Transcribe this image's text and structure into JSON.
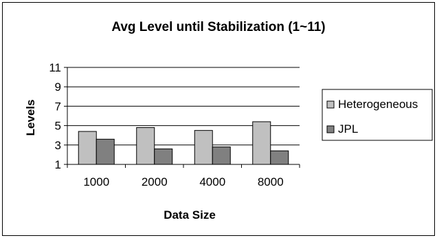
{
  "chart_data": {
    "type": "bar",
    "title": "Avg Level until Stabilization (1~11)",
    "xlabel": "Data Size",
    "ylabel": "Levels",
    "categories": [
      "1000",
      "2000",
      "4000",
      "8000"
    ],
    "series": [
      {
        "name": "Heterogeneous",
        "values": [
          4.4,
          4.8,
          4.5,
          5.4
        ],
        "color": "#c0c0c0"
      },
      {
        "name": "JPL",
        "values": [
          3.6,
          2.6,
          2.8,
          2.4
        ],
        "color": "#808080"
      }
    ],
    "ylim": [
      1,
      11
    ],
    "yticks": [
      "1",
      "3",
      "5",
      "7",
      "9",
      "11"
    ],
    "grid": true,
    "legend": "right",
    "plot_background": "#ffffff",
    "gridline_color": "#000000"
  }
}
